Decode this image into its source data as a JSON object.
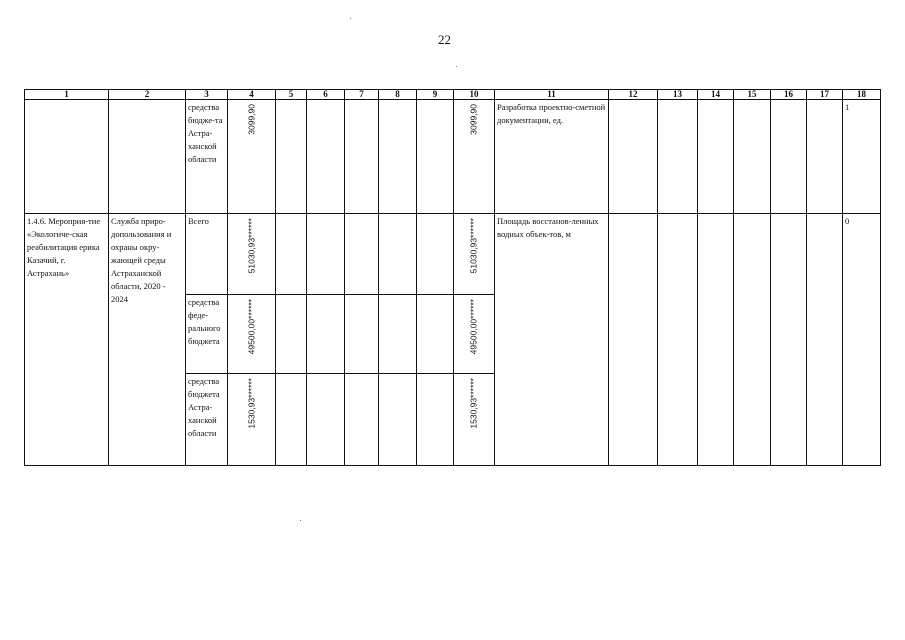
{
  "page_number": "22",
  "table": {
    "headers": [
      "1",
      "2",
      "3",
      "4",
      "5",
      "6",
      "7",
      "8",
      "9",
      "10",
      "11",
      "12",
      "13",
      "14",
      "15",
      "16",
      "17",
      "18"
    ],
    "row1": {
      "col3": "средства бюдже-та Астра-ханской области",
      "col4": "3099,90",
      "col10": "3099,90",
      "col11": "Разработка проектно-сметной документации, ед.",
      "col18": "1"
    },
    "row2": {
      "col1": "1.4.6. Мероприя-тие «Экологиче-ская реабилитация ерика Казачий, г. Астрахань»",
      "col2": "Служба приро-допользования и охраны окру-жающей среды Астраханской области, 2020 - 2024",
      "col11": "Площадь восстанов-ленных водных объек-тов, м",
      "col18": "0",
      "sub": [
        {
          "col3": "Всего",
          "col4": "51030,93******",
          "col10": "51030,93******"
        },
        {
          "col3": "средства феде-рального бюджета",
          "col4": "49500,00******",
          "col10": "49500,00******"
        },
        {
          "col3": "средства бюджета Астра-ханской области",
          "col4": "1530,93******",
          "col10": "1530,93******"
        }
      ]
    }
  }
}
